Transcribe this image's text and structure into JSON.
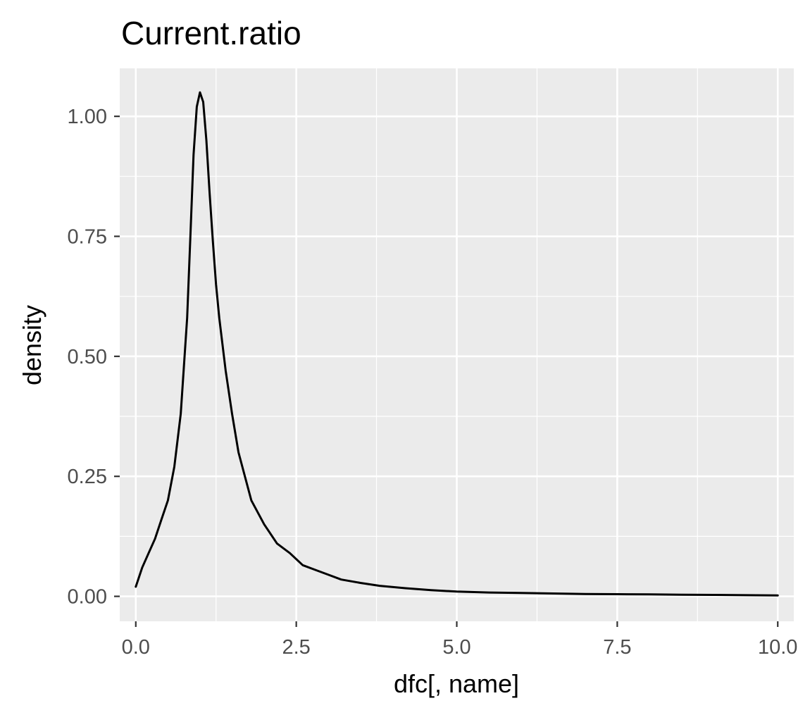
{
  "chart_data": {
    "type": "line",
    "title": "Current.ratio",
    "xlabel": "dfc[, name]",
    "ylabel": "density",
    "xlim": [
      -0.25,
      10.25
    ],
    "ylim": [
      -0.052,
      1.1
    ],
    "x_ticks": [
      0.0,
      2.5,
      5.0,
      7.5,
      10.0
    ],
    "x_tick_labels": [
      "0.0",
      "2.5",
      "5.0",
      "7.5",
      "10.0"
    ],
    "y_ticks": [
      0.0,
      0.25,
      0.5,
      0.75,
      1.0
    ],
    "y_tick_labels": [
      "0.00",
      "0.25",
      "0.50",
      "0.75",
      "1.00"
    ],
    "grid": true,
    "panel_background": "#ebebeb",
    "grid_color": "#ffffff",
    "line_color": "#000000",
    "series": [
      {
        "x": [
          0.0,
          0.1,
          0.2,
          0.3,
          0.4,
          0.5,
          0.6,
          0.7,
          0.8,
          0.85,
          0.9,
          0.95,
          1.0,
          1.05,
          1.1,
          1.15,
          1.2,
          1.25,
          1.3,
          1.4,
          1.5,
          1.6,
          1.7,
          1.8,
          2.0,
          2.2,
          2.4,
          2.6,
          2.8,
          3.0,
          3.2,
          3.5,
          3.8,
          4.2,
          4.6,
          5.0,
          5.5,
          6.0,
          6.5,
          7.0,
          7.5,
          8.0,
          8.5,
          9.0,
          9.5,
          10.0
        ],
        "y": [
          0.02,
          0.06,
          0.09,
          0.12,
          0.16,
          0.2,
          0.27,
          0.38,
          0.58,
          0.75,
          0.92,
          1.02,
          1.05,
          1.03,
          0.95,
          0.84,
          0.74,
          0.65,
          0.58,
          0.47,
          0.38,
          0.3,
          0.25,
          0.2,
          0.15,
          0.11,
          0.09,
          0.065,
          0.055,
          0.045,
          0.035,
          0.028,
          0.022,
          0.017,
          0.013,
          0.01,
          0.008,
          0.007,
          0.006,
          0.005,
          0.0045,
          0.004,
          0.0035,
          0.003,
          0.0025,
          0.002
        ]
      }
    ]
  }
}
